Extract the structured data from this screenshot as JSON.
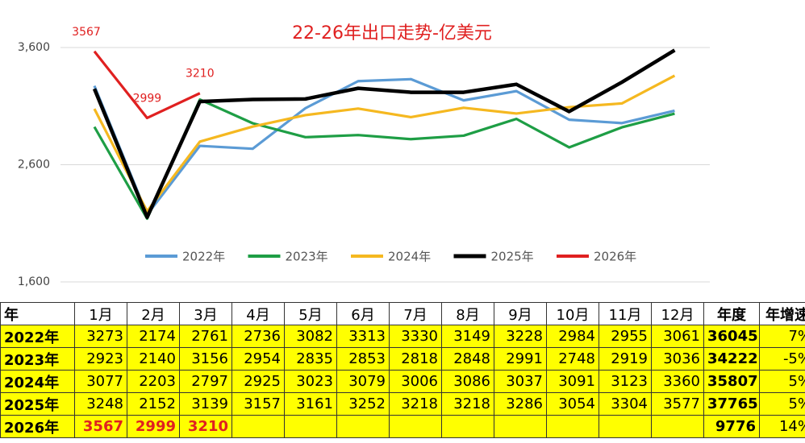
{
  "chart_data": {
    "type": "line",
    "title": "22-26年出口走势-亿美元",
    "categories": [
      "1月",
      "2月",
      "3月",
      "4月",
      "5月",
      "6月",
      "7月",
      "8月",
      "9月",
      "10月",
      "11月",
      "12月"
    ],
    "ylim": [
      1600,
      3600
    ],
    "yticks": [
      {
        "value": 1600,
        "label": "1,600"
      },
      {
        "value": 2600,
        "label": "2,600"
      },
      {
        "value": 3600,
        "label": "3,600"
      }
    ],
    "grid": true,
    "series": [
      {
        "name": "2022年",
        "color": "#5b9bd5",
        "values": [
          3273,
          2174,
          2761,
          2736,
          3082,
          3313,
          3330,
          3149,
          3228,
          2984,
          2955,
          3061
        ]
      },
      {
        "name": "2023年",
        "color": "#1e9e45",
        "values": [
          2923,
          2140,
          3156,
          2954,
          2835,
          2853,
          2818,
          2848,
          2991,
          2748,
          2919,
          3036
        ]
      },
      {
        "name": "2024年",
        "color": "#f5b820",
        "values": [
          3077,
          2203,
          2797,
          2925,
          3023,
          3079,
          3006,
          3086,
          3037,
          3091,
          3123,
          3360
        ]
      },
      {
        "name": "2025年",
        "color": "#000000",
        "values": [
          3248,
          2152,
          3139,
          3157,
          3161,
          3252,
          3218,
          3218,
          3286,
          3054,
          3304,
          3577
        ]
      },
      {
        "name": "2026年",
        "color": "#e02020",
        "values": [
          3567,
          2999,
          3210,
          null,
          null,
          null,
          null,
          null,
          null,
          null,
          null,
          null
        ]
      }
    ]
  },
  "table": {
    "header": [
      "年",
      "年度",
      "年增速"
    ],
    "totals": [
      36045,
      34222,
      35807,
      37765,
      9776
    ],
    "growth": [
      "7%",
      "-5%",
      "5%",
      "5%",
      "14%"
    ]
  }
}
